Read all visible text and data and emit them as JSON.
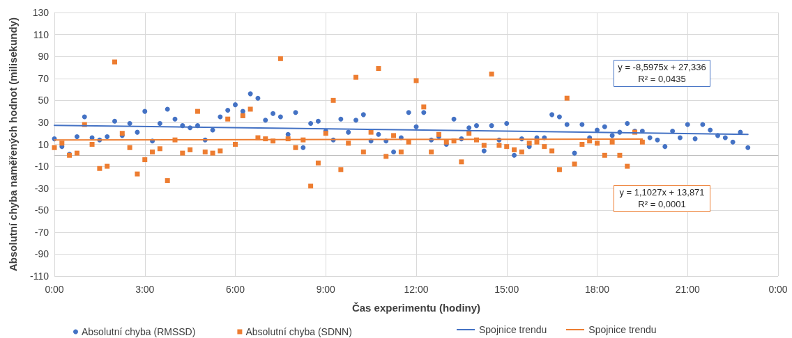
{
  "chart_data": {
    "type": "scatter",
    "xlabel": "Čas experimentu (hodiny)",
    "ylabel": "Absolutní chyba naměřených hodnot (milisekundy)",
    "xlim": [
      0,
      24
    ],
    "xticks": [
      {
        "value": 0,
        "label": "0:00"
      },
      {
        "value": 3,
        "label": "3:00"
      },
      {
        "value": 6,
        "label": "6:00"
      },
      {
        "value": 9,
        "label": "9:00"
      },
      {
        "value": 12,
        "label": "12:00"
      },
      {
        "value": 15,
        "label": "15:00"
      },
      {
        "value": 18,
        "label": "18:00"
      },
      {
        "value": 21,
        "label": "21:00"
      },
      {
        "value": 24,
        "label": "0:00"
      }
    ],
    "ylim": [
      -110,
      130
    ],
    "yticks": [
      -110,
      -90,
      -70,
      -50,
      -30,
      -10,
      10,
      30,
      50,
      70,
      90,
      110,
      130
    ],
    "grid": true,
    "legend": "bottom",
    "annotations": [
      "y = -8,5975x + 27,336\nR² = 0,0435",
      "y = 1,1027x + 13,871\nR² = 0,0001"
    ],
    "series": [
      {
        "name": "Absolutní chyba (RMSSD)",
        "marker": "circle",
        "color": "#4472c4",
        "x": [
          0,
          0.25,
          0.5,
          0.75,
          1,
          1.25,
          1.5,
          1.75,
          2,
          2.25,
          2.5,
          2.75,
          3,
          3.25,
          3.5,
          3.75,
          4,
          4.25,
          4.5,
          4.75,
          5,
          5.25,
          5.5,
          5.75,
          6,
          6.25,
          6.5,
          6.75,
          7,
          7.25,
          7.5,
          7.75,
          8,
          8.25,
          8.5,
          8.75,
          9,
          9.25,
          9.5,
          9.75,
          10,
          10.25,
          10.5,
          10.75,
          11,
          11.25,
          11.5,
          11.75,
          12,
          12.25,
          12.5,
          12.75,
          13,
          13.25,
          13.5,
          13.75,
          14,
          14.25,
          14.5,
          14.75,
          15,
          15.25,
          15.5,
          15.75,
          16,
          16.25,
          16.5,
          16.75,
          17,
          17.25,
          17.5,
          17.75,
          18,
          18.25,
          18.5,
          18.75,
          19,
          19.25,
          19.5,
          19.75,
          20,
          20.25,
          20.5,
          20.75,
          21,
          21.25,
          21.5,
          21.75,
          22,
          22.25,
          22.5,
          22.75,
          23
        ],
        "values": [
          15,
          8,
          1,
          17,
          35,
          16,
          14,
          17,
          31,
          18,
          29,
          21,
          40,
          13,
          29,
          42,
          33,
          27,
          25,
          27,
          14,
          23,
          35,
          41,
          46,
          40,
          56,
          52,
          32,
          38,
          35,
          19,
          39,
          7,
          29,
          31,
          22,
          14,
          33,
          21,
          32,
          37,
          13,
          19,
          13,
          3,
          16,
          39,
          26,
          39,
          14,
          17,
          10,
          33,
          15,
          25,
          27,
          4,
          27,
          14,
          29,
          0,
          15,
          8,
          16,
          16,
          37,
          35,
          28,
          2,
          28,
          16,
          23,
          26,
          18,
          21,
          29,
          22,
          22,
          16,
          14,
          8,
          22,
          16,
          28,
          15,
          28,
          23,
          18,
          16,
          12,
          21,
          7
        ]
      },
      {
        "name": "Absolutní chyba (SDNN)",
        "marker": "square",
        "color": "#ed7d31",
        "x": [
          0,
          0.25,
          0.5,
          0.75,
          1,
          1.25,
          1.5,
          1.75,
          2,
          2.25,
          2.5,
          2.75,
          3,
          3.25,
          3.5,
          3.75,
          4,
          4.25,
          4.5,
          4.75,
          5,
          5.25,
          5.5,
          5.75,
          6,
          6.25,
          6.5,
          6.75,
          7,
          7.25,
          7.5,
          7.75,
          8,
          8.25,
          8.5,
          8.75,
          9,
          9.25,
          9.5,
          9.75,
          10,
          10.25,
          10.5,
          10.75,
          11,
          11.25,
          11.5,
          11.75,
          12,
          12.25,
          12.5,
          12.75,
          13,
          13.25,
          13.5,
          13.75,
          14,
          14.25,
          14.5,
          14.75,
          15,
          15.25,
          15.5,
          15.75,
          16,
          16.25,
          16.5,
          16.75,
          17,
          17.25,
          17.5,
          17.75,
          18,
          18.25,
          18.5,
          18.75,
          19,
          19.25,
          19.5
        ],
        "values": [
          7,
          11,
          0,
          2,
          28,
          10,
          -12,
          -10,
          85,
          20,
          7,
          -17,
          -4,
          3,
          6,
          -23,
          14,
          2,
          5,
          40,
          3,
          2,
          4,
          33,
          10,
          36,
          42,
          16,
          15,
          13,
          88,
          15,
          7,
          14,
          -28,
          -7,
          20,
          50,
          -13,
          11,
          71,
          3,
          21,
          79,
          -1,
          18,
          3,
          12,
          68,
          44,
          3,
          19,
          12,
          13,
          -6,
          20,
          14,
          9,
          74,
          9,
          8,
          5,
          3,
          11,
          12,
          8,
          4,
          -13,
          52,
          -8,
          10,
          13,
          11,
          0,
          12,
          0,
          -10,
          21,
          12
        ]
      },
      {
        "name": "Spojnice trendu",
        "type": "line",
        "marker": "none",
        "line_style": "solid",
        "color": "#4472c4",
        "x": [
          0,
          23
        ],
        "values": [
          27.3,
          19.1
        ]
      },
      {
        "name": "Spojnice trendu",
        "type": "line",
        "marker": "none",
        "line_style": "solid",
        "color": "#ed7d31",
        "x": [
          0,
          19.5
        ],
        "values": [
          13.9,
          14.8
        ]
      }
    ]
  }
}
